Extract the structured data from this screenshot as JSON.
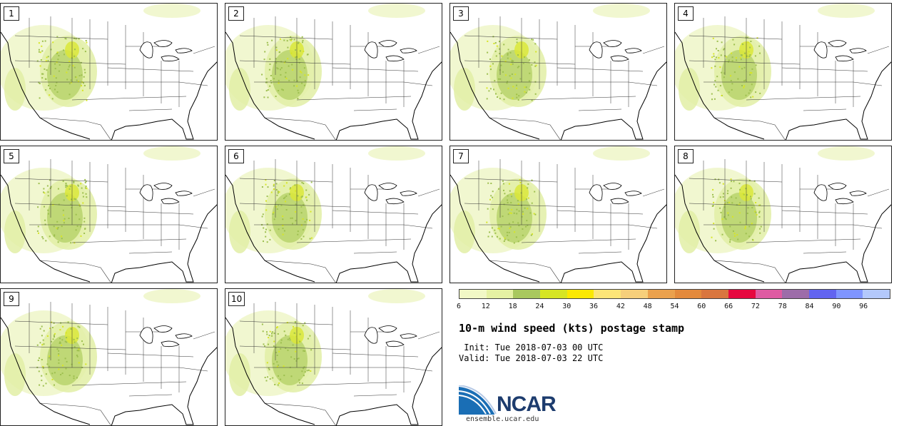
{
  "panels": [
    {
      "label": "1"
    },
    {
      "label": "2"
    },
    {
      "label": "3"
    },
    {
      "label": "4"
    },
    {
      "label": "5"
    },
    {
      "label": "6"
    },
    {
      "label": "7"
    },
    {
      "label": "8"
    },
    {
      "label": "9"
    },
    {
      "label": "10"
    }
  ],
  "colorbar": {
    "colors": [
      "#f1f8c6",
      "#e5f1a3",
      "#a9c85e",
      "#d6e524",
      "#fbe802",
      "#fce578",
      "#f6cf7b",
      "#eaa14d",
      "#e38a3c",
      "#d9763f",
      "#e6083f",
      "#df5ba2",
      "#9d6da9",
      "#6264f0",
      "#7f95ff",
      "#b3c8fb"
    ],
    "ticks": [
      "6",
      "12",
      "18",
      "24",
      "30",
      "36",
      "42",
      "48",
      "54",
      "60",
      "66",
      "72",
      "78",
      "84",
      "90",
      "96"
    ]
  },
  "title": "10-m wind speed (kts) postage stamp",
  "init": " Init: Tue 2018-07-03 00 UTC",
  "valid": "Valid: Tue 2018-07-03 22 UTC",
  "logo_text": "NCAR",
  "site": "ensemble.ucar.edu"
}
